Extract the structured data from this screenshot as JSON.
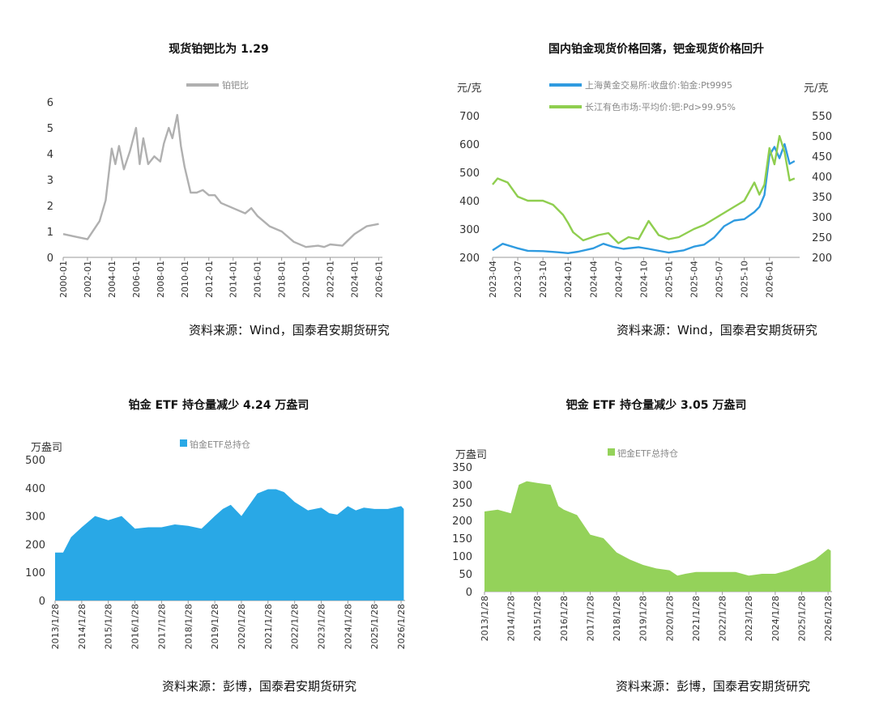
{
  "panels": {
    "p1": {
      "title": "现货铂钯比为 1.29",
      "source": "资料来源：Wind，国泰君安期货研究"
    },
    "p2": {
      "title": "国内铂金现货价格回落，钯金现货价格回升",
      "source": "资料来源：Wind，国泰君安期货研究"
    },
    "p3": {
      "title": "铂金 ETF 持仓量减少 4.24 万盎司",
      "source": "资料来源：彭博，国泰君安期货研究"
    },
    "p4": {
      "title": "钯金 ETF 持仓量减少 3.05 万盎司",
      "source": "资料来源：彭博，国泰君安期货研究"
    }
  },
  "chart_data": [
    {
      "type": "line",
      "title": "现货铂钯比为 1.29",
      "ylim": [
        0,
        6
      ],
      "yticks": [
        "0",
        "1",
        "2",
        "3",
        "4",
        "5",
        "6"
      ],
      "xticks": [
        "2000-01",
        "2002-01",
        "2004-01",
        "2006-01",
        "2008-01",
        "2010-01",
        "2012-01",
        "2014-01",
        "2016-01",
        "2018-01",
        "2020-01",
        "2022-01",
        "2024-01",
        "2026-01"
      ],
      "grid": false,
      "legend": "top-center",
      "series": [
        {
          "name": "铂钯比",
          "color": "#b0b0b0",
          "x": [
            2000.0,
            2001.0,
            2002.0,
            2003.0,
            2003.5,
            2004.0,
            2004.3,
            2004.6,
            2005.0,
            2005.5,
            2006.0,
            2006.3,
            2006.6,
            2007.0,
            2007.5,
            2008.0,
            2008.3,
            2008.7,
            2009.0,
            2009.4,
            2009.7,
            2010.0,
            2010.5,
            2011.0,
            2011.5,
            2012.0,
            2012.5,
            2013.0,
            2014.0,
            2015.0,
            2015.5,
            2016.0,
            2016.5,
            2017.0,
            2018.0,
            2019.0,
            2020.0,
            2021.0,
            2021.5,
            2022.0,
            2023.0,
            2024.0,
            2025.0,
            2026.0
          ],
          "values": [
            0.9,
            0.8,
            0.7,
            1.4,
            2.2,
            4.2,
            3.6,
            4.3,
            3.4,
            4.1,
            5.0,
            3.6,
            4.6,
            3.6,
            3.9,
            3.7,
            4.4,
            5.0,
            4.6,
            5.5,
            4.3,
            3.5,
            2.5,
            2.5,
            2.6,
            2.4,
            2.4,
            2.1,
            1.9,
            1.7,
            1.9,
            1.6,
            1.4,
            1.2,
            1.0,
            0.6,
            0.4,
            0.45,
            0.4,
            0.5,
            0.45,
            0.9,
            1.2,
            1.29
          ]
        }
      ]
    },
    {
      "type": "line",
      "title": "国内铂金现货价格回落，钯金现货价格回升",
      "ylabel": "元/克",
      "ylabel_right": "元/克",
      "ylim": [
        200,
        700
      ],
      "ylim_right": [
        200,
        550
      ],
      "yticks": [
        "200",
        "300",
        "400",
        "500",
        "600",
        "700"
      ],
      "yticks_right": [
        "200",
        "250",
        "300",
        "350",
        "400",
        "450",
        "500",
        "550"
      ],
      "xticks": [
        "2023-04",
        "2023-07",
        "2023-10",
        "2024-01",
        "2024-04",
        "2024-07",
        "2024-10",
        "2025-01",
        "2025-04",
        "2025-07",
        "2025-10",
        "2026-01"
      ],
      "legend": "top-center",
      "series": [
        {
          "name": "上海黄金交易所:收盘价:铂金:Pt9995",
          "axis": "left",
          "color": "#2f9be0",
          "x": [
            2023.25,
            2023.35,
            2023.5,
            2023.6,
            2023.75,
            2023.9,
            2024.0,
            2024.1,
            2024.25,
            2024.35,
            2024.45,
            2024.55,
            2024.7,
            2024.8,
            2024.95,
            2025.0,
            2025.15,
            2025.25,
            2025.35,
            2025.45,
            2025.55,
            2025.65,
            2025.75,
            2025.85,
            2025.9,
            2025.95,
            2026.0,
            2026.05,
            2026.1,
            2026.15,
            2026.2,
            2026.25
          ],
          "values": [
            225,
            248,
            232,
            223,
            222,
            218,
            215,
            220,
            232,
            248,
            237,
            230,
            236,
            230,
            220,
            217,
            225,
            238,
            245,
            270,
            310,
            330,
            335,
            360,
            378,
            420,
            560,
            590,
            550,
            600,
            530,
            540
          ]
        },
        {
          "name": "长江有色市场:平均价:钯:Pd>99.95%",
          "axis": "right",
          "color": "#8fce4f",
          "x": [
            2023.25,
            2023.3,
            2023.4,
            2023.5,
            2023.6,
            2023.75,
            2023.85,
            2023.95,
            2024.0,
            2024.05,
            2024.15,
            2024.3,
            2024.4,
            2024.5,
            2024.6,
            2024.7,
            2024.8,
            2024.9,
            2025.0,
            2025.1,
            2025.25,
            2025.35,
            2025.45,
            2025.55,
            2025.65,
            2025.75,
            2025.85,
            2025.9,
            2025.95,
            2026.0,
            2026.05,
            2026.1,
            2026.15,
            2026.2,
            2026.25
          ],
          "values": [
            380,
            395,
            385,
            350,
            340,
            340,
            330,
            305,
            285,
            262,
            242,
            255,
            260,
            235,
            250,
            245,
            290,
            255,
            245,
            250,
            270,
            280,
            295,
            310,
            325,
            340,
            385,
            355,
            380,
            470,
            430,
            500,
            460,
            390,
            395
          ]
        }
      ]
    },
    {
      "type": "area",
      "title": "铂金 ETF 持仓量减少 4.24 万盎司",
      "ylabel": "万盎司",
      "ylim": [
        0,
        500
      ],
      "yticks": [
        "0",
        "100",
        "200",
        "300",
        "400",
        "500"
      ],
      "xticks": [
        "2013/1/28",
        "2014/1/28",
        "2015/1/28",
        "2016/1/28",
        "2017/1/28",
        "2018/1/28",
        "2019/1/28",
        "2020/1/28",
        "2021/1/28",
        "2022/1/28",
        "2023/1/28",
        "2024/1/28",
        "2025/1/28",
        "2026/1/28"
      ],
      "legend": "top-center",
      "series": [
        {
          "name": "铂金ETF总持仓",
          "color": "#29a8e6",
          "x": [
            2013.0,
            2013.3,
            2013.6,
            2014.0,
            2014.5,
            2015.0,
            2015.5,
            2016.0,
            2016.5,
            2017.0,
            2017.5,
            2018.0,
            2018.5,
            2019.0,
            2019.3,
            2019.6,
            2020.0,
            2020.3,
            2020.6,
            2021.0,
            2021.3,
            2021.6,
            2022.0,
            2022.5,
            2023.0,
            2023.3,
            2023.6,
            2024.0,
            2024.3,
            2024.6,
            2025.0,
            2025.5,
            2026.0,
            2026.1
          ],
          "values": [
            170,
            170,
            225,
            260,
            300,
            285,
            300,
            255,
            260,
            260,
            270,
            265,
            255,
            300,
            325,
            340,
            300,
            340,
            380,
            395,
            395,
            385,
            350,
            320,
            330,
            310,
            305,
            335,
            320,
            330,
            325,
            325,
            335,
            325
          ]
        }
      ]
    },
    {
      "type": "area",
      "title": "钯金 ETF 持仓量减少 3.05 万盎司",
      "ylabel": "万盎司",
      "ylim": [
        0,
        350
      ],
      "yticks": [
        "0",
        "50",
        "100",
        "150",
        "200",
        "250",
        "300",
        "350"
      ],
      "xticks": [
        "2013/1/28",
        "2014/1/28",
        "2015/1/28",
        "2016/1/28",
        "2017/1/28",
        "2018/1/28",
        "2019/1/28",
        "2020/1/28",
        "2021/1/28",
        "2022/1/28",
        "2023/1/28",
        "2024/1/28",
        "2025/1/28",
        "2026/1/28"
      ],
      "legend": "top-center",
      "series": [
        {
          "name": "钯金ETF总持仓",
          "color": "#94d25a",
          "x": [
            2013.0,
            2013.5,
            2014.0,
            2014.3,
            2014.6,
            2015.0,
            2015.5,
            2015.8,
            2016.0,
            2016.5,
            2017.0,
            2017.5,
            2018.0,
            2018.5,
            2019.0,
            2019.5,
            2020.0,
            2020.3,
            2020.6,
            2021.0,
            2021.5,
            2022.0,
            2022.5,
            2023.0,
            2023.5,
            2024.0,
            2024.5,
            2025.0,
            2025.5,
            2026.0,
            2026.1
          ],
          "values": [
            225,
            230,
            220,
            300,
            310,
            305,
            300,
            240,
            230,
            215,
            160,
            150,
            110,
            90,
            75,
            65,
            60,
            45,
            50,
            55,
            55,
            55,
            55,
            45,
            50,
            50,
            60,
            75,
            90,
            120,
            115
          ]
        }
      ]
    }
  ]
}
